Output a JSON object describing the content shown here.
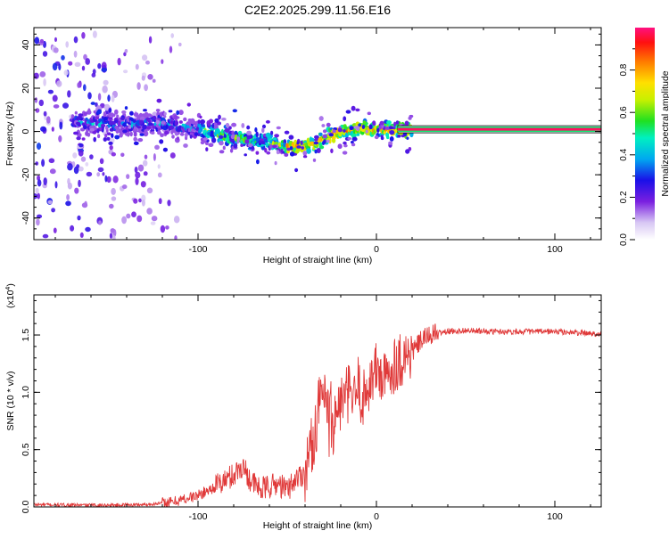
{
  "title": "C2E2.2025.299.11.56.E16",
  "colors": {
    "snr_line": "#e03a3a",
    "axis": "#000000",
    "background": "#ffffff"
  },
  "chart_data": [
    {
      "type": "heatmap",
      "xlabel": "Height of straight line (km)",
      "ylabel": "Frequency (Hz)",
      "xlim": [
        -192,
        126
      ],
      "ylim": [
        -50,
        48
      ],
      "xticks": [
        -100,
        0,
        100
      ],
      "yticks": [
        -40,
        -20,
        0,
        20,
        40
      ],
      "xtick_labels": [
        "-100",
        "0",
        "100"
      ],
      "ytick_labels": [
        "-40",
        "-20",
        "0",
        "20",
        "40"
      ],
      "colorbar": {
        "label": "Normalized spectral amplitude",
        "range": [
          0,
          1
        ],
        "ticks": [
          0.0,
          0.2,
          0.4,
          0.6,
          0.8
        ],
        "tick_labels": [
          "0.0",
          "0.2",
          "0.4",
          "0.6",
          "0.8"
        ]
      },
      "ridge": {
        "description": "dominant Doppler ridge frequency (Hz) vs height (km)",
        "x": [
          -160,
          -140,
          -120,
          -100,
          -80,
          -60,
          -50,
          -40,
          -30,
          -20,
          -10,
          0,
          10,
          20,
          126
        ],
        "y": [
          4,
          3,
          4,
          1,
          -3,
          -5,
          -7,
          -7,
          -4,
          0,
          1,
          1,
          1,
          1,
          1
        ]
      }
    },
    {
      "type": "line",
      "xlabel": "Height of straight line (km)",
      "ylabel": "SNR (10 * v/v)",
      "y_scale_label": "(x10",
      "y_scale_exp": "4",
      "xlim": [
        -192,
        126
      ],
      "ylim": [
        0,
        18500
      ],
      "xticks": [
        -100,
        0,
        100
      ],
      "yticks": [
        0,
        5000,
        10000,
        15000
      ],
      "xtick_labels": [
        "-100",
        "0",
        "100"
      ],
      "ytick_labels": [
        "0.0",
        "0.5",
        "1.0",
        "1.5"
      ],
      "series": [
        {
          "name": "SNR",
          "x": [
            -192,
            -160,
            -130,
            -115,
            -100,
            -90,
            -80,
            -75,
            -70,
            -65,
            -60,
            -55,
            -50,
            -45,
            -40,
            -38,
            -35,
            -32,
            -30,
            -28,
            -26,
            -24,
            -22,
            -20,
            -18,
            -15,
            -12,
            -10,
            -8,
            -5,
            0,
            5,
            10,
            15,
            20,
            25,
            30,
            35,
            40,
            50,
            60,
            80,
            100,
            126
          ],
          "y": [
            200,
            150,
            200,
            400,
            1000,
            1800,
            2800,
            3600,
            2200,
            1500,
            1800,
            2000,
            1500,
            2500,
            3000,
            4500,
            6000,
            9000,
            10000,
            8000,
            7500,
            7000,
            8500,
            9000,
            9500,
            10000,
            9200,
            11000,
            9000,
            10500,
            12000,
            11000,
            12500,
            13000,
            13500,
            14500,
            15000,
            15200,
            15300,
            15400,
            15300,
            15300,
            15300,
            15100
          ]
        }
      ]
    }
  ]
}
